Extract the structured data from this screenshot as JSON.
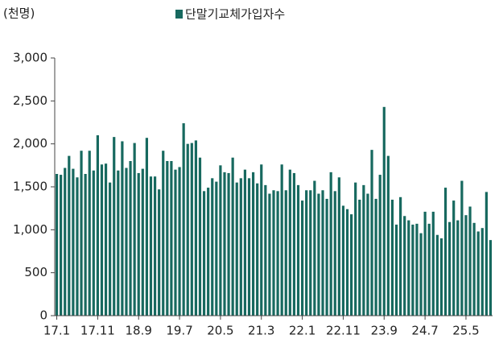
{
  "chart_data": {
    "type": "bar",
    "unit_label": "(천명)",
    "series": [
      {
        "name": "단말기교체가입자수",
        "color": "#17695f",
        "values": [
          1650,
          1640,
          1720,
          1860,
          1710,
          1610,
          1920,
          1650,
          1920,
          1690,
          2100,
          1760,
          1770,
          1550,
          2080,
          1690,
          2030,
          1720,
          1800,
          2010,
          1660,
          1710,
          2070,
          1620,
          1620,
          1470,
          1920,
          1800,
          1800,
          1700,
          1730,
          2240,
          2000,
          2010,
          2040,
          1840,
          1450,
          1490,
          1600,
          1560,
          1750,
          1670,
          1660,
          1840,
          1550,
          1600,
          1700,
          1600,
          1670,
          1540,
          1760,
          1520,
          1420,
          1460,
          1450,
          1760,
          1460,
          1700,
          1660,
          1520,
          1340,
          1460,
          1460,
          1570,
          1420,
          1460,
          1360,
          1670,
          1450,
          1610,
          1280,
          1240,
          1180,
          1550,
          1350,
          1520,
          1420,
          1930,
          1360,
          1640,
          2430,
          1860,
          1350,
          1060,
          1380,
          1160,
          1110,
          1060,
          1070,
          960,
          1210,
          1070,
          1210,
          940,
          900,
          1490,
          1090,
          1340,
          1110,
          1570,
          1170,
          1270,
          1080,
          980,
          1020,
          1440,
          880
        ]
      }
    ],
    "categories": [
      "17.1",
      null,
      null,
      null,
      null,
      null,
      null,
      null,
      null,
      null,
      "17.11",
      null,
      null,
      null,
      null,
      null,
      null,
      null,
      null,
      null,
      "18.9",
      null,
      null,
      null,
      null,
      null,
      null,
      null,
      null,
      null,
      "19.7",
      null,
      null,
      null,
      null,
      null,
      null,
      null,
      null,
      null,
      "20.5",
      null,
      null,
      null,
      null,
      null,
      null,
      null,
      null,
      null,
      "21.3",
      null,
      null,
      null,
      null,
      null,
      null,
      null,
      null,
      null,
      "22.1",
      null,
      null,
      null,
      null,
      null,
      null,
      null,
      null,
      null,
      "22.11",
      null,
      null,
      null,
      null,
      null,
      null,
      null,
      null,
      null,
      "23.9",
      null,
      null,
      null,
      null,
      null,
      null,
      null,
      null,
      null,
      "24.7",
      null,
      null,
      null,
      null,
      null,
      null,
      null,
      null,
      null,
      "25.5",
      null,
      null,
      null,
      null,
      null,
      null
    ],
    "ylim": [
      0,
      3000
    ],
    "yticks": [
      0,
      500,
      {
        "value": 1000,
        "label": "1,000"
      },
      {
        "value": 1500,
        "label": "1,500"
      },
      {
        "value": 2000,
        "label": "2,000"
      },
      {
        "value": 2500,
        "label": "2,500"
      },
      {
        "value": 3000,
        "label": "3,000"
      }
    ]
  }
}
